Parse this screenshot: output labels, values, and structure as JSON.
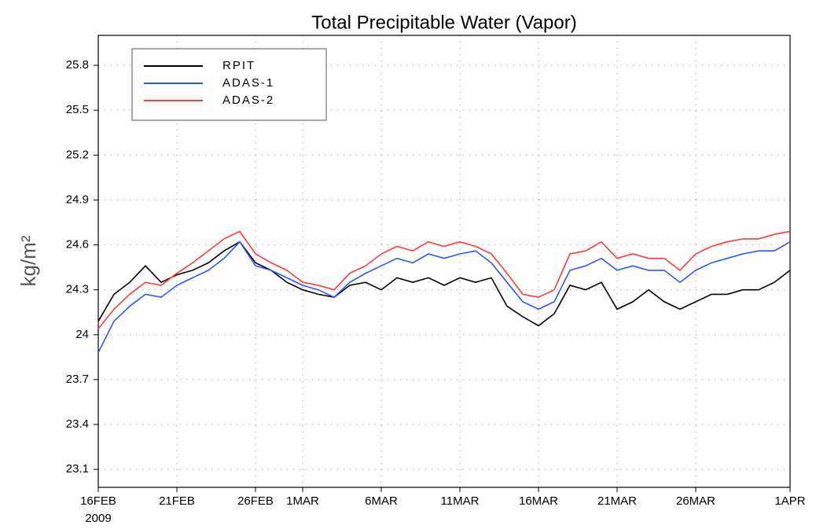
{
  "chart_data": {
    "type": "line",
    "title": "Total Precipitable Water (Vapor)",
    "ylabel": "kg/m²",
    "x_year": "2009",
    "x": [
      "2009-02-16",
      "2009-02-17",
      "2009-02-18",
      "2009-02-19",
      "2009-02-20",
      "2009-02-21",
      "2009-02-22",
      "2009-02-23",
      "2009-02-24",
      "2009-02-25",
      "2009-02-26",
      "2009-02-27",
      "2009-02-28",
      "2009-03-01",
      "2009-03-02",
      "2009-03-03",
      "2009-03-04",
      "2009-03-05",
      "2009-03-06",
      "2009-03-07",
      "2009-03-08",
      "2009-03-09",
      "2009-03-10",
      "2009-03-11",
      "2009-03-12",
      "2009-03-13",
      "2009-03-14",
      "2009-03-15",
      "2009-03-16",
      "2009-03-17",
      "2009-03-18",
      "2009-03-19",
      "2009-03-20",
      "2009-03-21",
      "2009-03-22",
      "2009-03-23",
      "2009-03-24",
      "2009-03-25",
      "2009-03-26",
      "2009-03-27",
      "2009-03-28",
      "2009-03-29",
      "2009-03-30",
      "2009-03-31",
      "2009-04-01"
    ],
    "series": [
      {
        "name": "RPIT",
        "color": "#000000",
        "values": [
          24.09,
          24.27,
          24.35,
          24.46,
          24.35,
          24.4,
          24.43,
          24.48,
          24.56,
          24.62,
          24.48,
          24.43,
          24.35,
          24.3,
          24.27,
          24.25,
          24.33,
          24.35,
          24.3,
          24.38,
          24.35,
          24.38,
          24.33,
          24.38,
          24.35,
          24.38,
          24.19,
          24.12,
          24.06,
          24.14,
          24.33,
          24.3,
          24.35,
          24.17,
          24.22,
          24.3,
          24.22,
          24.17,
          24.22,
          24.27,
          24.27,
          24.3,
          24.3,
          24.35,
          24.43
        ]
      },
      {
        "name": "ADAS-1",
        "color": "#2a55ff",
        "values": [
          23.88,
          24.09,
          24.19,
          24.27,
          24.25,
          24.33,
          24.38,
          24.43,
          24.51,
          24.62,
          24.46,
          24.43,
          24.38,
          24.33,
          24.3,
          24.25,
          24.35,
          24.41,
          24.46,
          24.51,
          24.48,
          24.54,
          24.51,
          24.54,
          24.56,
          24.48,
          24.35,
          24.22,
          24.17,
          24.22,
          24.43,
          24.46,
          24.51,
          24.43,
          24.46,
          24.43,
          24.43,
          24.35,
          24.43,
          24.48,
          24.51,
          24.54,
          24.56,
          24.56,
          24.62
        ]
      },
      {
        "name": "ADAS-2",
        "color": "#ff3838",
        "values": [
          24.04,
          24.17,
          24.27,
          24.35,
          24.33,
          24.41,
          24.48,
          24.56,
          24.64,
          24.69,
          24.54,
          24.48,
          24.43,
          24.35,
          24.33,
          24.3,
          24.41,
          24.46,
          24.54,
          24.59,
          24.56,
          24.62,
          24.59,
          24.62,
          24.59,
          24.54,
          24.41,
          24.27,
          24.25,
          24.3,
          24.54,
          24.56,
          24.62,
          24.51,
          24.54,
          24.51,
          24.51,
          24.43,
          24.54,
          24.59,
          24.62,
          24.64,
          24.64,
          24.67,
          24.69
        ]
      }
    ],
    "xlim": [
      "2009-02-16",
      "2009-04-01"
    ],
    "xticks": [
      {
        "value": "2009-02-16",
        "label": "16FEB"
      },
      {
        "value": "2009-02-21",
        "label": "21FEB"
      },
      {
        "value": "2009-02-26",
        "label": "26FEB"
      },
      {
        "value": "2009-03-01",
        "label": "1MAR"
      },
      {
        "value": "2009-03-06",
        "label": "6MAR"
      },
      {
        "value": "2009-03-11",
        "label": "11MAR"
      },
      {
        "value": "2009-03-16",
        "label": "16MAR"
      },
      {
        "value": "2009-03-21",
        "label": "21MAR"
      },
      {
        "value": "2009-03-26",
        "label": "26MAR"
      },
      {
        "value": "2009-04-01",
        "label": "1APR"
      }
    ],
    "ylim": [
      22.98,
      26.0
    ],
    "yticks": [
      23.1,
      23.4,
      23.7,
      24.0,
      24.3,
      24.6,
      24.9,
      25.2,
      25.5,
      25.8
    ],
    "grid": true,
    "legend": "upper-left"
  }
}
